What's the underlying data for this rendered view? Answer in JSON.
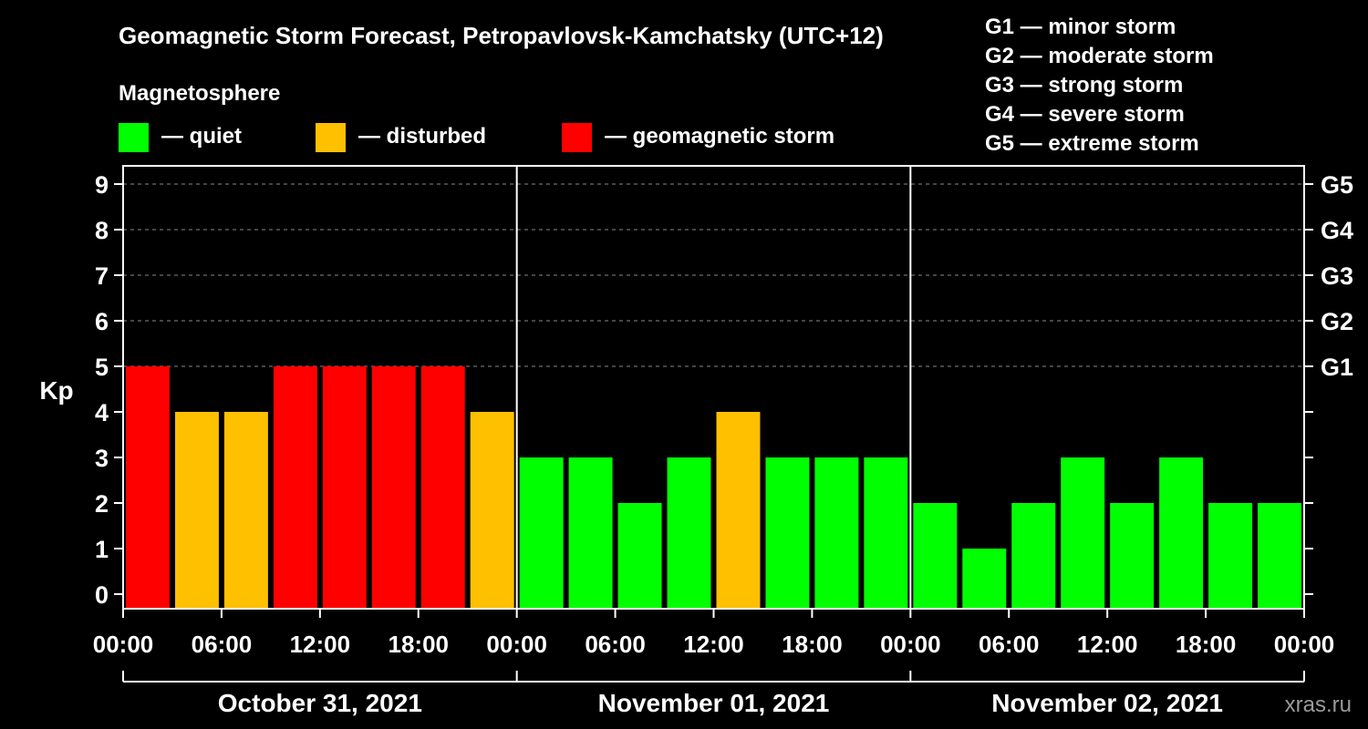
{
  "chart_data": {
    "type": "bar",
    "title": "Geomagnetic Storm Forecast, Petropavlovsk-Kamchatsky (UTC+12)",
    "legend_title": "Magnetosphere",
    "legend": [
      {
        "key": "quiet",
        "label": "— quiet",
        "color": "#00ff00"
      },
      {
        "key": "disturbed",
        "label": "— disturbed",
        "color": "#ffc000"
      },
      {
        "key": "storm",
        "label": "— geomagnetic storm",
        "color": "#ff0000"
      }
    ],
    "storm_levels": [
      "G1 — minor storm",
      "G2 — moderate storm",
      "G3 — strong storm",
      "G4 — severe storm",
      "G5 — extreme storm"
    ],
    "ylabel": "Kp",
    "ylim": [
      0,
      9
    ],
    "yticks": [
      "0",
      "1",
      "2",
      "3",
      "4",
      "5",
      "6",
      "7",
      "8",
      "9"
    ],
    "right_ticks": [
      {
        "kp": 5,
        "label": "G1"
      },
      {
        "kp": 6,
        "label": "G2"
      },
      {
        "kp": 7,
        "label": "G3"
      },
      {
        "kp": 8,
        "label": "G4"
      },
      {
        "kp": 9,
        "label": "G5"
      }
    ],
    "grid": true,
    "xticks": [
      "00:00",
      "06:00",
      "12:00",
      "18:00",
      "00:00",
      "06:00",
      "12:00",
      "18:00",
      "00:00",
      "06:00",
      "12:00",
      "18:00",
      "00:00"
    ],
    "days": [
      "October 31, 2021",
      "November 01, 2021",
      "November 02, 2021"
    ],
    "interval_hours": 3,
    "values": [
      5,
      4,
      4,
      5,
      5,
      5,
      5,
      4,
      3,
      3,
      2,
      3,
      4,
      3,
      3,
      3,
      2,
      1,
      2,
      3,
      2,
      3,
      2,
      2
    ]
  },
  "watermark": "xras.ru"
}
